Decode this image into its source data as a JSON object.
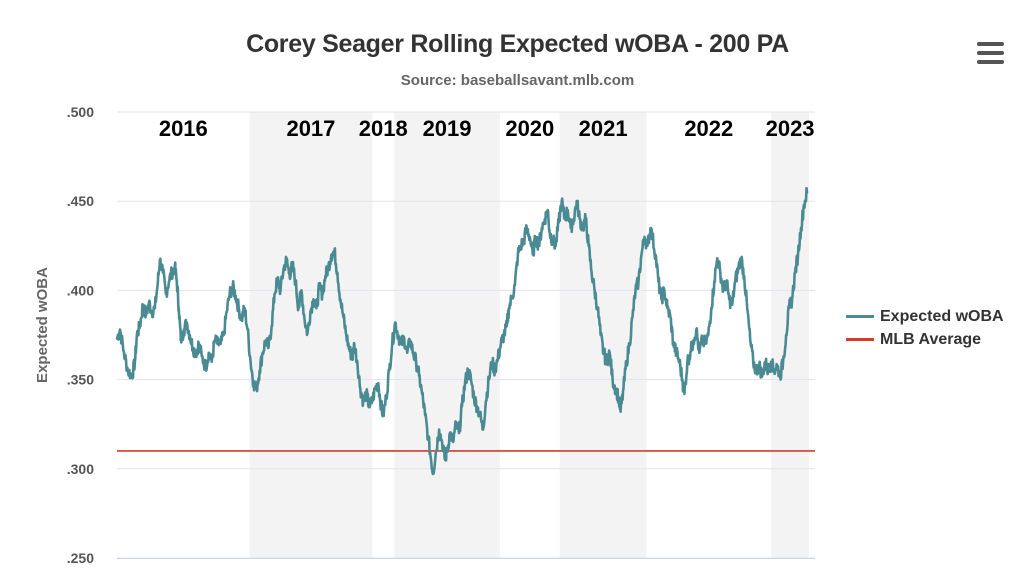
{
  "chart_data": {
    "type": "line",
    "title": "Corey Seager Rolling Expected wOBA - 200 PA",
    "subtitle": "Source: baseballsavant.mlb.com",
    "ylabel": "Expected wOBA",
    "xlabel": "",
    "ylim": [
      0.25,
      0.5
    ],
    "yticks": [
      {
        "value": 0.5,
        "label": ".500"
      },
      {
        "value": 0.45,
        "label": ".450"
      },
      {
        "value": 0.4,
        "label": ".400"
      },
      {
        "value": 0.35,
        "label": ".350"
      },
      {
        "value": 0.3,
        "label": ".300"
      },
      {
        "value": 0.25,
        "label": ".250"
      }
    ],
    "xlim": [
      0,
      700
    ],
    "grid": true,
    "legend_position": "right",
    "reference_line": {
      "name": "MLB Average",
      "value": 0.31,
      "color": "#d93a2b"
    },
    "seasons": [
      {
        "label": "2016",
        "start": 0,
        "end": 133,
        "shaded": false
      },
      {
        "label": "2017",
        "start": 133,
        "end": 256,
        "shaded": true
      },
      {
        "label": "2018",
        "start": 256,
        "end": 278,
        "shaded": false
      },
      {
        "label": "2019",
        "start": 278,
        "end": 384,
        "shaded": true
      },
      {
        "label": "2020",
        "start": 384,
        "end": 444,
        "shaded": false
      },
      {
        "label": "2021",
        "start": 444,
        "end": 531,
        "shaded": true
      },
      {
        "label": "2022",
        "start": 531,
        "end": 656,
        "shaded": false
      },
      {
        "label": "2023",
        "start": 656,
        "end": 694,
        "shaded": true
      }
    ],
    "series": [
      {
        "name": "Expected wOBA",
        "color": "#4a8a93",
        "points": [
          [
            0,
            0.373
          ],
          [
            3,
            0.378
          ],
          [
            7,
            0.365
          ],
          [
            11,
            0.355
          ],
          [
            15,
            0.352
          ],
          [
            18,
            0.36
          ],
          [
            20,
            0.375
          ],
          [
            23,
            0.38
          ],
          [
            26,
            0.392
          ],
          [
            29,
            0.386
          ],
          [
            32,
            0.393
          ],
          [
            35,
            0.388
          ],
          [
            38,
            0.39
          ],
          [
            41,
            0.405
          ],
          [
            43,
            0.417
          ],
          [
            46,
            0.41
          ],
          [
            49,
            0.398
          ],
          [
            52,
            0.405
          ],
          [
            55,
            0.41
          ],
          [
            58,
            0.413
          ],
          [
            60,
            0.405
          ],
          [
            62,
            0.39
          ],
          [
            64,
            0.372
          ],
          [
            67,
            0.378
          ],
          [
            70,
            0.382
          ],
          [
            73,
            0.375
          ],
          [
            76,
            0.368
          ],
          [
            79,
            0.365
          ],
          [
            82,
            0.37
          ],
          [
            85,
            0.363
          ],
          [
            89,
            0.357
          ],
          [
            92,
            0.365
          ],
          [
            95,
            0.36
          ],
          [
            98,
            0.372
          ],
          [
            101,
            0.37
          ],
          [
            104,
            0.37
          ],
          [
            107,
            0.375
          ],
          [
            110,
            0.388
          ],
          [
            113,
            0.398
          ],
          [
            116,
            0.402
          ],
          [
            119,
            0.397
          ],
          [
            122,
            0.39
          ],
          [
            125,
            0.384
          ],
          [
            128,
            0.39
          ],
          [
            131,
            0.378
          ],
          [
            134,
            0.36
          ],
          [
            137,
            0.348
          ],
          [
            140,
            0.345
          ],
          [
            143,
            0.355
          ],
          [
            146,
            0.365
          ],
          [
            149,
            0.372
          ],
          [
            152,
            0.368
          ],
          [
            155,
            0.38
          ],
          [
            158,
            0.398
          ],
          [
            161,
            0.406
          ],
          [
            164,
            0.4
          ],
          [
            167,
            0.412
          ],
          [
            170,
            0.417
          ],
          [
            173,
            0.409
          ],
          [
            176,
            0.414
          ],
          [
            179,
            0.405
          ],
          [
            182,
            0.39
          ],
          [
            185,
            0.4
          ],
          [
            188,
            0.384
          ],
          [
            191,
            0.376
          ],
          [
            194,
            0.388
          ],
          [
            197,
            0.395
          ],
          [
            200,
            0.39
          ],
          [
            203,
            0.402
          ],
          [
            206,
            0.398
          ],
          [
            209,
            0.408
          ],
          [
            212,
            0.413
          ],
          [
            215,
            0.42
          ],
          [
            218,
            0.422
          ],
          [
            221,
            0.41
          ],
          [
            224,
            0.395
          ],
          [
            227,
            0.385
          ],
          [
            230,
            0.375
          ],
          [
            233,
            0.367
          ],
          [
            236,
            0.362
          ],
          [
            238,
            0.37
          ],
          [
            241,
            0.36
          ],
          [
            244,
            0.345
          ],
          [
            247,
            0.338
          ],
          [
            250,
            0.342
          ],
          [
            253,
            0.335
          ],
          [
            256,
            0.338
          ],
          [
            259,
            0.345
          ],
          [
            262,
            0.348
          ],
          [
            265,
            0.335
          ],
          [
            267,
            0.33
          ],
          [
            270,
            0.34
          ],
          [
            273,
            0.355
          ],
          [
            276,
            0.37
          ],
          [
            279,
            0.382
          ],
          [
            282,
            0.375
          ],
          [
            285,
            0.37
          ],
          [
            288,
            0.373
          ],
          [
            291,
            0.365
          ],
          [
            294,
            0.372
          ],
          [
            297,
            0.365
          ],
          [
            300,
            0.36
          ],
          [
            303,
            0.352
          ],
          [
            306,
            0.342
          ],
          [
            309,
            0.33
          ],
          [
            312,
            0.318
          ],
          [
            315,
            0.305
          ],
          [
            317,
            0.298
          ],
          [
            320,
            0.31
          ],
          [
            323,
            0.322
          ],
          [
            326,
            0.315
          ],
          [
            329,
            0.305
          ],
          [
            331,
            0.31
          ],
          [
            334,
            0.32
          ],
          [
            337,
            0.315
          ],
          [
            340,
            0.325
          ],
          [
            343,
            0.32
          ],
          [
            346,
            0.335
          ],
          [
            349,
            0.348
          ],
          [
            352,
            0.355
          ],
          [
            355,
            0.35
          ],
          [
            358,
            0.34
          ],
          [
            361,
            0.335
          ],
          [
            364,
            0.33
          ],
          [
            367,
            0.322
          ],
          [
            370,
            0.338
          ],
          [
            373,
            0.35
          ],
          [
            376,
            0.36
          ],
          [
            379,
            0.355
          ],
          [
            382,
            0.362
          ],
          [
            385,
            0.37
          ],
          [
            388,
            0.375
          ],
          [
            391,
            0.38
          ],
          [
            393,
            0.39
          ],
          [
            396,
            0.396
          ],
          [
            399,
            0.403
          ],
          [
            402,
            0.42
          ],
          [
            405,
            0.425
          ],
          [
            408,
            0.428
          ],
          [
            411,
            0.435
          ],
          [
            414,
            0.43
          ],
          [
            417,
            0.42
          ],
          [
            420,
            0.43
          ],
          [
            423,
            0.425
          ],
          [
            426,
            0.435
          ],
          [
            429,
            0.44
          ],
          [
            432,
            0.445
          ],
          [
            434,
            0.432
          ],
          [
            437,
            0.428
          ],
          [
            440,
            0.425
          ],
          [
            443,
            0.438
          ],
          [
            446,
            0.45
          ],
          [
            449,
            0.44
          ],
          [
            452,
            0.445
          ],
          [
            455,
            0.435
          ],
          [
            458,
            0.44
          ],
          [
            461,
            0.45
          ],
          [
            464,
            0.44
          ],
          [
            467,
            0.435
          ],
          [
            470,
            0.44
          ],
          [
            473,
            0.425
          ],
          [
            476,
            0.41
          ],
          [
            479,
            0.4
          ],
          [
            482,
            0.39
          ],
          [
            485,
            0.375
          ],
          [
            488,
            0.365
          ],
          [
            491,
            0.36
          ],
          [
            494,
            0.365
          ],
          [
            497,
            0.35
          ],
          [
            500,
            0.345
          ],
          [
            503,
            0.34
          ],
          [
            505,
            0.332
          ],
          [
            508,
            0.345
          ],
          [
            511,
            0.36
          ],
          [
            514,
            0.37
          ],
          [
            517,
            0.385
          ],
          [
            520,
            0.4
          ],
          [
            523,
            0.405
          ],
          [
            526,
            0.42
          ],
          [
            529,
            0.43
          ],
          [
            532,
            0.425
          ],
          [
            535,
            0.435
          ],
          [
            537,
            0.43
          ],
          [
            540,
            0.42
          ],
          [
            543,
            0.405
          ],
          [
            546,
            0.395
          ],
          [
            549,
            0.4
          ],
          [
            552,
            0.39
          ],
          [
            555,
            0.385
          ],
          [
            558,
            0.37
          ],
          [
            561,
            0.365
          ],
          [
            564,
            0.36
          ],
          [
            567,
            0.35
          ],
          [
            569,
            0.342
          ],
          [
            572,
            0.36
          ],
          [
            575,
            0.365
          ],
          [
            578,
            0.372
          ],
          [
            581,
            0.378
          ],
          [
            584,
            0.365
          ],
          [
            587,
            0.372
          ],
          [
            590,
            0.37
          ],
          [
            593,
            0.375
          ],
          [
            596,
            0.39
          ],
          [
            599,
            0.405
          ],
          [
            602,
            0.418
          ],
          [
            605,
            0.41
          ],
          [
            608,
            0.4
          ],
          [
            611,
            0.405
          ],
          [
            614,
            0.395
          ],
          [
            617,
            0.392
          ],
          [
            620,
            0.405
          ],
          [
            623,
            0.412
          ],
          [
            626,
            0.418
          ],
          [
            629,
            0.408
          ],
          [
            632,
            0.39
          ],
          [
            635,
            0.372
          ],
          [
            638,
            0.36
          ],
          [
            641,
            0.355
          ],
          [
            644,
            0.358
          ],
          [
            647,
            0.352
          ],
          [
            650,
            0.36
          ],
          [
            653,
            0.355
          ],
          [
            656,
            0.36
          ],
          [
            659,
            0.355
          ],
          [
            662,
            0.358
          ],
          [
            665,
            0.352
          ],
          [
            668,
            0.36
          ],
          [
            671,
            0.375
          ],
          [
            674,
            0.39
          ],
          [
            677,
            0.395
          ],
          [
            680,
            0.41
          ],
          [
            683,
            0.42
          ],
          [
            686,
            0.435
          ],
          [
            689,
            0.448
          ],
          [
            692,
            0.455
          ]
        ]
      }
    ]
  },
  "legend": {
    "items": [
      {
        "label": "Expected wOBA",
        "color": "#4a8a93"
      },
      {
        "label": "MLB Average",
        "color": "#d93a2b"
      }
    ]
  }
}
